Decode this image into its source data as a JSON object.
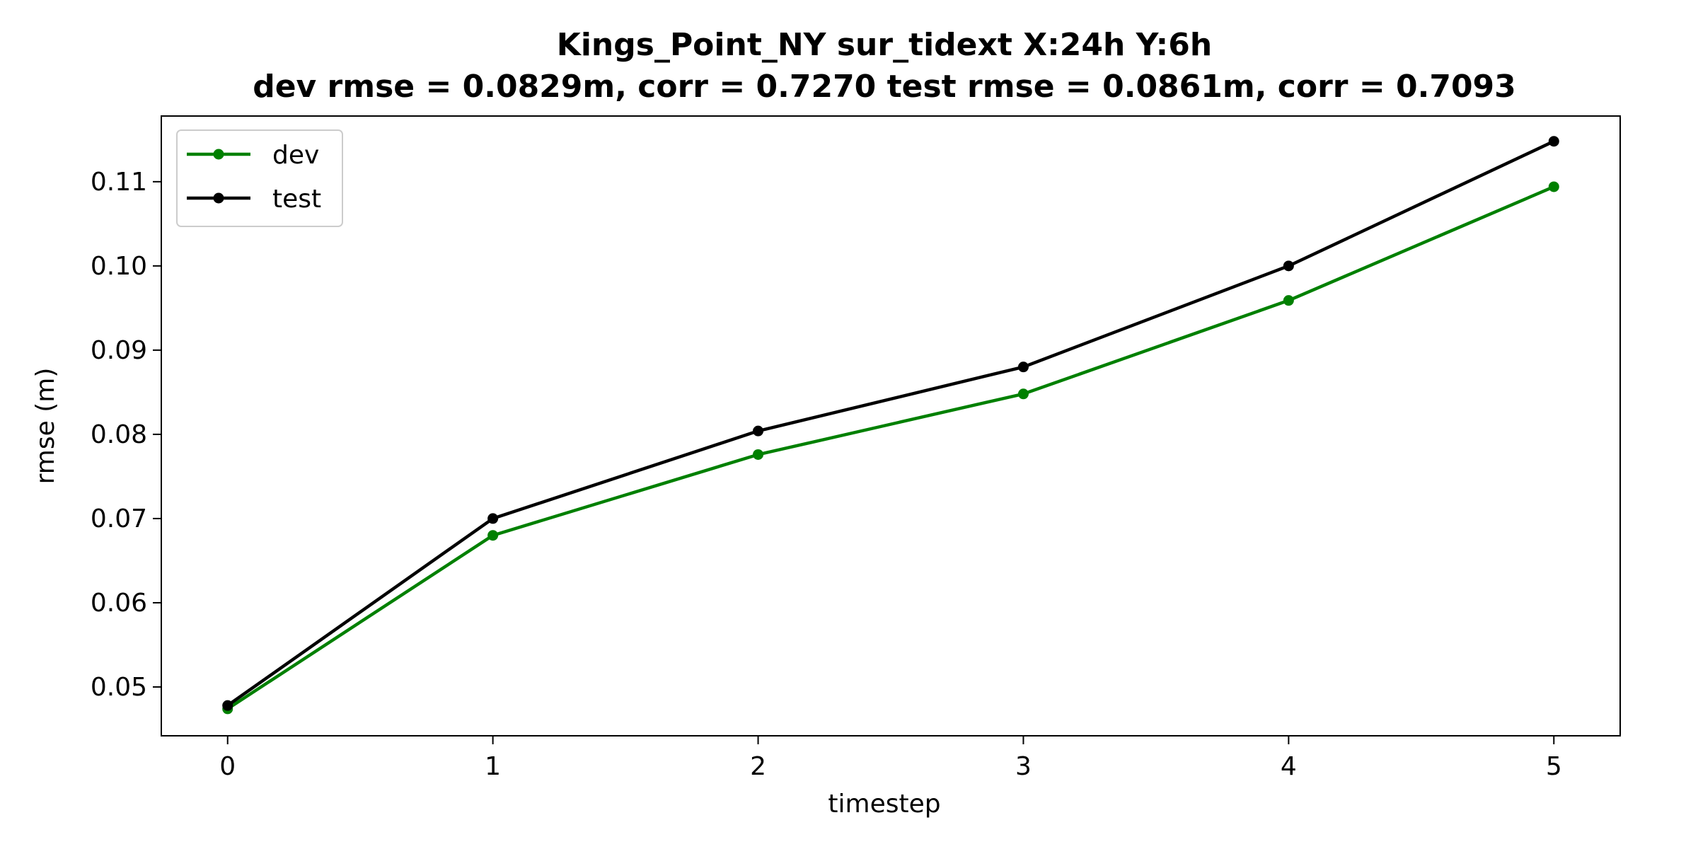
{
  "chart_data": {
    "type": "line",
    "title": "Kings_Point_NY   sur_tidext   X:24h   Y:6h",
    "subtitle": "dev rmse = 0.0829m, corr = 0.7270   test rmse = 0.0861m, corr = 0.7093",
    "xlabel": "timestep",
    "ylabel": "rmse (m)",
    "x": [
      0,
      1,
      2,
      3,
      4,
      5
    ],
    "xlim": [
      -0.25,
      5.25
    ],
    "ylim": [
      0.0442,
      0.1178
    ],
    "xticks": [
      0,
      1,
      2,
      3,
      4,
      5
    ],
    "yticks": [
      0.05,
      0.06,
      0.07,
      0.08,
      0.09,
      0.1,
      0.11
    ],
    "ytick_labels": [
      "0.05",
      "0.06",
      "0.07",
      "0.08",
      "0.09",
      "0.10",
      "0.11"
    ],
    "grid": false,
    "legend_position": "upper-left",
    "series": [
      {
        "name": "dev",
        "color": "#008000",
        "marker": "circle",
        "values": [
          0.0474,
          0.068,
          0.0776,
          0.0848,
          0.0959,
          0.1094
        ]
      },
      {
        "name": "test",
        "color": "#000000",
        "marker": "circle",
        "values": [
          0.0478,
          0.07,
          0.0804,
          0.088,
          0.1,
          0.1148
        ]
      }
    ]
  }
}
